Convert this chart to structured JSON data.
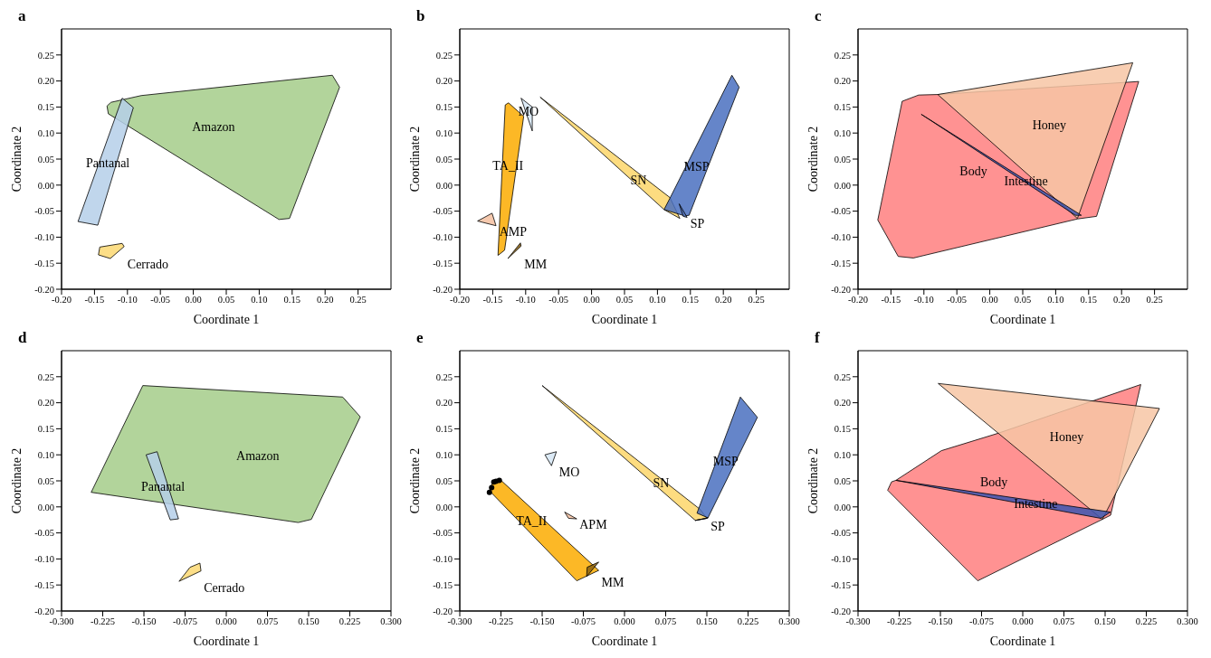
{
  "chart_data": [
    {
      "type": "area",
      "title": "a",
      "xlabel": "Coordinate 1",
      "ylabel": "Coordinate 2",
      "xlim": [
        -0.2,
        0.3
      ],
      "ylim": [
        -0.2,
        0.3
      ],
      "xticks": [
        {
          "value": -0.2,
          "label": "-0.20"
        },
        -0.15,
        {
          "value": -0.1,
          "label": "-0.10"
        },
        -0.05,
        {
          "value": 0,
          "label": "0.00"
        },
        0.05,
        {
          "value": 0.1,
          "label": "0.10"
        },
        0.15,
        {
          "value": 0.2,
          "label": "0.20"
        },
        0.25
      ],
      "yticks": [
        {
          "value": -0.2,
          "label": "-0.20"
        },
        -0.15,
        {
          "value": -0.1,
          "label": "-0.10"
        },
        -0.05,
        {
          "value": 0,
          "label": "0.00"
        },
        0.05,
        {
          "value": 0.1,
          "label": "0.10"
        },
        0.15,
        {
          "value": 0.2,
          "label": "0.20"
        },
        0.25
      ],
      "series": [
        {
          "name": "Amazon",
          "color": "#a5cd8a",
          "x": [
            -0.131,
            -0.125,
            -0.079,
            0.211,
            0.222,
            0.146,
            0.13,
            -0.129
          ],
          "values": [
            0.152,
            0.159,
            0.172,
            0.211,
            0.188,
            -0.064,
            -0.066,
            0.137
          ]
        },
        {
          "name": "Pantanal",
          "color": "#b5cfe9",
          "x": [
            -0.108,
            -0.091,
            -0.145,
            -0.175
          ],
          "values": [
            0.167,
            0.149,
            -0.077,
            -0.07
          ]
        },
        {
          "name": "Cerrado",
          "color": "#fcd872",
          "x": [
            -0.142,
            -0.108,
            -0.105,
            -0.126,
            -0.144
          ],
          "values": [
            -0.119,
            -0.112,
            -0.118,
            -0.141,
            -0.134
          ]
        }
      ]
    },
    {
      "type": "area",
      "title": "b",
      "xlabel": "Coordinate 1",
      "ylabel": "Coordinate 2",
      "xlim": [
        -0.2,
        0.3
      ],
      "ylim": [
        -0.2,
        0.3
      ],
      "xticks": [
        {
          "value": -0.2,
          "label": "-0.20"
        },
        -0.15,
        {
          "value": -0.1,
          "label": "-0.10"
        },
        -0.05,
        {
          "value": 0,
          "label": "0.00"
        },
        0.05,
        {
          "value": 0.1,
          "label": "0.10"
        },
        0.15,
        {
          "value": 0.2,
          "label": "0.20"
        },
        0.25
      ],
      "yticks": [
        {
          "value": -0.2,
          "label": "-0.20"
        },
        -0.15,
        {
          "value": -0.1,
          "label": "-0.10"
        },
        -0.05,
        {
          "value": 0,
          "label": "0.00"
        },
        0.05,
        {
          "value": 0.1,
          "label": "0.10"
        },
        0.15,
        {
          "value": 0.2,
          "label": "0.20"
        },
        0.25
      ],
      "series": [
        {
          "name": "TA_II",
          "color": "#fbab00",
          "x": [
            -0.131,
            -0.126,
            -0.103,
            -0.132,
            -0.142
          ],
          "values": [
            0.154,
            0.158,
            0.132,
            -0.125,
            -0.135
          ]
        },
        {
          "name": "MO",
          "color": "#d6e6f4",
          "x": [
            -0.107,
            -0.09,
            -0.09
          ],
          "values": [
            0.167,
            0.15,
            0.104
          ]
        },
        {
          "name": "AMP",
          "color": "#f5bfa0",
          "x": [
            -0.173,
            -0.151,
            -0.145
          ],
          "values": [
            -0.069,
            -0.054,
            -0.078
          ]
        },
        {
          "name": "MM",
          "color": "#8a6010",
          "x": [
            -0.127,
            -0.108,
            -0.107
          ],
          "values": [
            -0.141,
            -0.111,
            -0.117
          ]
        },
        {
          "name": "SN",
          "color": "#fdd66a",
          "x": [
            -0.078,
            0.119,
            0.134,
            0.11
          ],
          "values": [
            0.169,
            -0.024,
            -0.064,
            -0.047
          ]
        },
        {
          "name": "MSP",
          "color": "#4a70c0",
          "x": [
            0.213,
            0.224,
            0.148,
            0.141,
            0.11,
            0.119
          ],
          "values": [
            0.211,
            0.188,
            -0.058,
            -0.059,
            -0.047,
            -0.025
          ]
        },
        {
          "name": "SP",
          "color": "#5070b8",
          "x": [
            0.133,
            0.145,
            0.139
          ],
          "values": [
            -0.036,
            -0.062,
            -0.06
          ]
        }
      ]
    },
    {
      "type": "area",
      "title": "c",
      "xlabel": "Coordinate 1",
      "ylabel": "Coordinate 2",
      "xlim": [
        -0.2,
        0.3
      ],
      "ylim": [
        -0.2,
        0.3
      ],
      "xticks": [
        {
          "value": -0.2,
          "label": "-0.20"
        },
        -0.15,
        {
          "value": -0.1,
          "label": "-0.10"
        },
        -0.05,
        {
          "value": 0,
          "label": "0.00"
        },
        0.05,
        {
          "value": 0.1,
          "label": "0.10"
        },
        0.15,
        {
          "value": 0.2,
          "label": "0.20"
        },
        0.25
      ],
      "yticks": [
        {
          "value": -0.2,
          "label": "-0.20"
        },
        -0.15,
        {
          "value": -0.1,
          "label": "-0.10"
        },
        -0.05,
        {
          "value": 0,
          "label": "0.00"
        },
        0.05,
        {
          "value": 0.1,
          "label": "0.10"
        },
        0.15,
        {
          "value": 0.2,
          "label": "0.20"
        },
        0.25
      ],
      "series": [
        {
          "name": "Body",
          "color": "#ff7f7f",
          "x": [
            -0.133,
            -0.108,
            -0.079,
            0.226,
            0.162,
            0.133,
            -0.116,
            -0.139,
            -0.17
          ],
          "values": [
            0.161,
            0.173,
            0.174,
            0.199,
            -0.06,
            -0.065,
            -0.14,
            -0.137,
            -0.067
          ]
        },
        {
          "name": "Honey",
          "color": "#f7c6a5",
          "x": [
            -0.079,
            0.217,
            0.133
          ],
          "values": [
            0.174,
            0.235,
            -0.064
          ]
        },
        {
          "name": "Intestine",
          "color": "#3c55b0",
          "x": [
            -0.104,
            0.139,
            0.13
          ],
          "values": [
            0.136,
            -0.058,
            -0.058
          ]
        }
      ]
    },
    {
      "type": "area",
      "title": "d",
      "xlabel": "Coordinate 1",
      "ylabel": "Coordinate 2",
      "xlim": [
        -0.3,
        0.3
      ],
      "ylim": [
        -0.2,
        0.3
      ],
      "xticks": [
        {
          "value": -0.3,
          "label": "-0.300"
        },
        -0.225,
        {
          "value": -0.15,
          "label": "-0.150"
        },
        -0.075,
        {
          "value": 0,
          "label": "0.000"
        },
        0.075,
        {
          "value": 0.15,
          "label": "0.150"
        },
        0.225,
        {
          "value": 0.3,
          "label": "0.300"
        }
      ],
      "yticks": [
        {
          "value": -0.2,
          "label": "-0.20"
        },
        -0.15,
        {
          "value": -0.1,
          "label": "-0.10"
        },
        -0.05,
        {
          "value": 0,
          "label": "0.00"
        },
        0.05,
        {
          "value": 0.1,
          "label": "0.10"
        },
        0.15,
        {
          "value": 0.2,
          "label": "0.20"
        },
        0.25
      ],
      "series": [
        {
          "name": "Amazon",
          "color": "#a5cd8a",
          "x": [
            -0.152,
            0.212,
            0.244,
            0.155,
            0.131,
            -0.246
          ],
          "values": [
            0.233,
            0.211,
            0.173,
            -0.024,
            -0.03,
            0.028
          ]
        },
        {
          "name": "Panantal",
          "color": "#b5cfe9",
          "x": [
            -0.146,
            -0.126,
            -0.087,
            -0.102
          ],
          "values": [
            0.1,
            0.106,
            -0.023,
            -0.025
          ]
        },
        {
          "name": "Cerrado",
          "color": "#fcd872",
          "x": [
            -0.086,
            -0.066,
            -0.048,
            -0.046
          ],
          "values": [
            -0.143,
            -0.116,
            -0.108,
            -0.123
          ]
        }
      ]
    },
    {
      "type": "area",
      "title": "e",
      "xlabel": "Coordinate 1",
      "ylabel": "Coordinate 2",
      "xlim": [
        -0.3,
        0.3
      ],
      "ylim": [
        -0.2,
        0.3
      ],
      "xticks": [
        {
          "value": -0.3,
          "label": "-0.300"
        },
        -0.225,
        {
          "value": -0.15,
          "label": "-0.150"
        },
        -0.075,
        {
          "value": 0,
          "label": "0.000"
        },
        0.075,
        {
          "value": 0.15,
          "label": "0.150"
        },
        0.225,
        {
          "value": 0.3,
          "label": "0.300"
        }
      ],
      "yticks": [
        {
          "value": -0.2,
          "label": "-0.20"
        },
        -0.15,
        {
          "value": -0.1,
          "label": "-0.10"
        },
        -0.05,
        {
          "value": 0,
          "label": "0.00"
        },
        0.05,
        {
          "value": 0.1,
          "label": "0.10"
        },
        0.15,
        {
          "value": 0.2,
          "label": "0.20"
        },
        0.25
      ],
      "series": [
        {
          "name": "SN",
          "color": "#fdd66a",
          "x": [
            -0.15,
            0.138,
            0.15,
            0.129
          ],
          "values": [
            0.233,
            -0.005,
            -0.022,
            -0.026
          ]
        },
        {
          "name": "MSP",
          "color": "#4a70c0",
          "x": [
            0.211,
            0.242,
            0.152,
            0.132
          ],
          "values": [
            0.211,
            0.172,
            -0.021,
            -0.012
          ]
        },
        {
          "name": "TA_II",
          "color": "#fbab00",
          "x": [
            -0.246,
            -0.24,
            -0.227,
            -0.047,
            -0.087
          ],
          "values": [
            0.031,
            0.048,
            0.053,
            -0.122,
            -0.142
          ]
        },
        {
          "type": "scatter",
          "color": "#000000",
          "marker": "circle",
          "x": [
            -0.246,
            -0.242,
            -0.238,
            -0.234,
            -0.228
          ],
          "values": [
            0.028,
            0.037,
            0.048,
            0.049,
            0.051
          ]
        },
        {
          "name": "MO",
          "color": "#d6e6f4",
          "x": [
            -0.145,
            -0.124,
            -0.133
          ],
          "values": [
            0.1,
            0.106,
            0.079
          ]
        },
        {
          "name": "APM",
          "color": "#f5bfa0",
          "x": [
            -0.109,
            -0.087,
            -0.102
          ],
          "values": [
            -0.01,
            -0.023,
            -0.022
          ]
        },
        {
          "name": "MM",
          "color": "#8a6010",
          "x": [
            -0.068,
            -0.047,
            -0.069
          ],
          "values": [
            -0.116,
            -0.106,
            -0.134
          ]
        },
        {
          "name": "SP",
          "color": "#5070b8",
          "x": [
            0.129,
            0.15,
            0.152
          ],
          "values": [
            -0.026,
            -0.022,
            -0.021
          ]
        }
      ]
    },
    {
      "type": "area",
      "title": "f",
      "xlabel": "Coordinate 1",
      "ylabel": "Coordinate 2",
      "xlim": [
        -0.3,
        0.3
      ],
      "ylim": [
        -0.2,
        0.3
      ],
      "xticks": [
        {
          "value": -0.3,
          "label": "-0.300"
        },
        -0.225,
        {
          "value": -0.15,
          "label": "-0.150"
        },
        -0.075,
        {
          "value": 0,
          "label": "0.000"
        },
        0.075,
        {
          "value": 0.15,
          "label": "0.150"
        },
        0.225,
        {
          "value": 0.3,
          "label": "0.300"
        }
      ],
      "yticks": [
        {
          "value": -0.2,
          "label": "-0.20"
        },
        -0.15,
        {
          "value": -0.1,
          "label": "-0.10"
        },
        -0.05,
        {
          "value": 0,
          "label": "0.00"
        },
        0.05,
        {
          "value": 0.1,
          "label": "0.10"
        },
        0.15,
        {
          "value": 0.2,
          "label": "0.20"
        },
        0.25
      ],
      "series": [
        {
          "name": "Body",
          "color": "#ff7f7f",
          "x": [
            -0.231,
            -0.148,
            -0.046,
            0.215,
            0.16,
            0.145,
            -0.082,
            -0.246,
            -0.239
          ],
          "values": [
            0.051,
            0.108,
            0.141,
            0.235,
            -0.016,
            -0.024,
            -0.142,
            0.032,
            0.048
          ]
        },
        {
          "name": "Honey",
          "color": "#f7c6a5",
          "x": [
            -0.154,
            0.249,
            0.145
          ],
          "values": [
            0.237,
            0.189,
            -0.024
          ]
        },
        {
          "name": "Intestine",
          "color": "#3c55b0",
          "x": [
            -0.231,
            0.16,
            0.142
          ],
          "values": [
            0.051,
            -0.01,
            -0.022
          ]
        }
      ]
    }
  ]
}
